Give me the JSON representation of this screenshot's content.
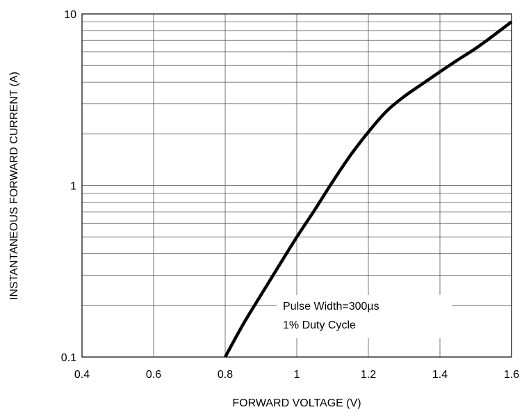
{
  "chart_data": {
    "type": "line",
    "title": "",
    "xlabel": "FORWARD VOLTAGE (V)",
    "ylabel": "INSTANTANEOUS FORWARD CURRENT (A)",
    "xlim": [
      0.4,
      1.6
    ],
    "ylim": [
      0.1,
      10
    ],
    "yscale": "log",
    "grid": true,
    "x_ticks": [
      0.4,
      0.6,
      0.8,
      1.0,
      1.2,
      1.4,
      1.6
    ],
    "x_tick_labels": [
      "0.4",
      "0.6",
      "0.8",
      "1",
      "1.2",
      "1.4",
      "1.6"
    ],
    "y_ticks": [
      0.1,
      1,
      10
    ],
    "y_tick_labels": [
      "0.1",
      "1",
      "10"
    ],
    "annotations": [
      "Pulse Width=300µs",
      "1% Duty Cycle"
    ],
    "line_color": "#000000",
    "series": [
      {
        "x": [
          0.8,
          0.85,
          0.9,
          0.95,
          1.0,
          1.05,
          1.1,
          1.15,
          1.2,
          1.25,
          1.3,
          1.35,
          1.4,
          1.45,
          1.5,
          1.55,
          1.6
        ],
        "y": [
          0.1,
          0.155,
          0.23,
          0.34,
          0.5,
          0.72,
          1.05,
          1.5,
          2.05,
          2.7,
          3.3,
          3.9,
          4.6,
          5.4,
          6.3,
          7.5,
          9.0
        ]
      }
    ]
  }
}
